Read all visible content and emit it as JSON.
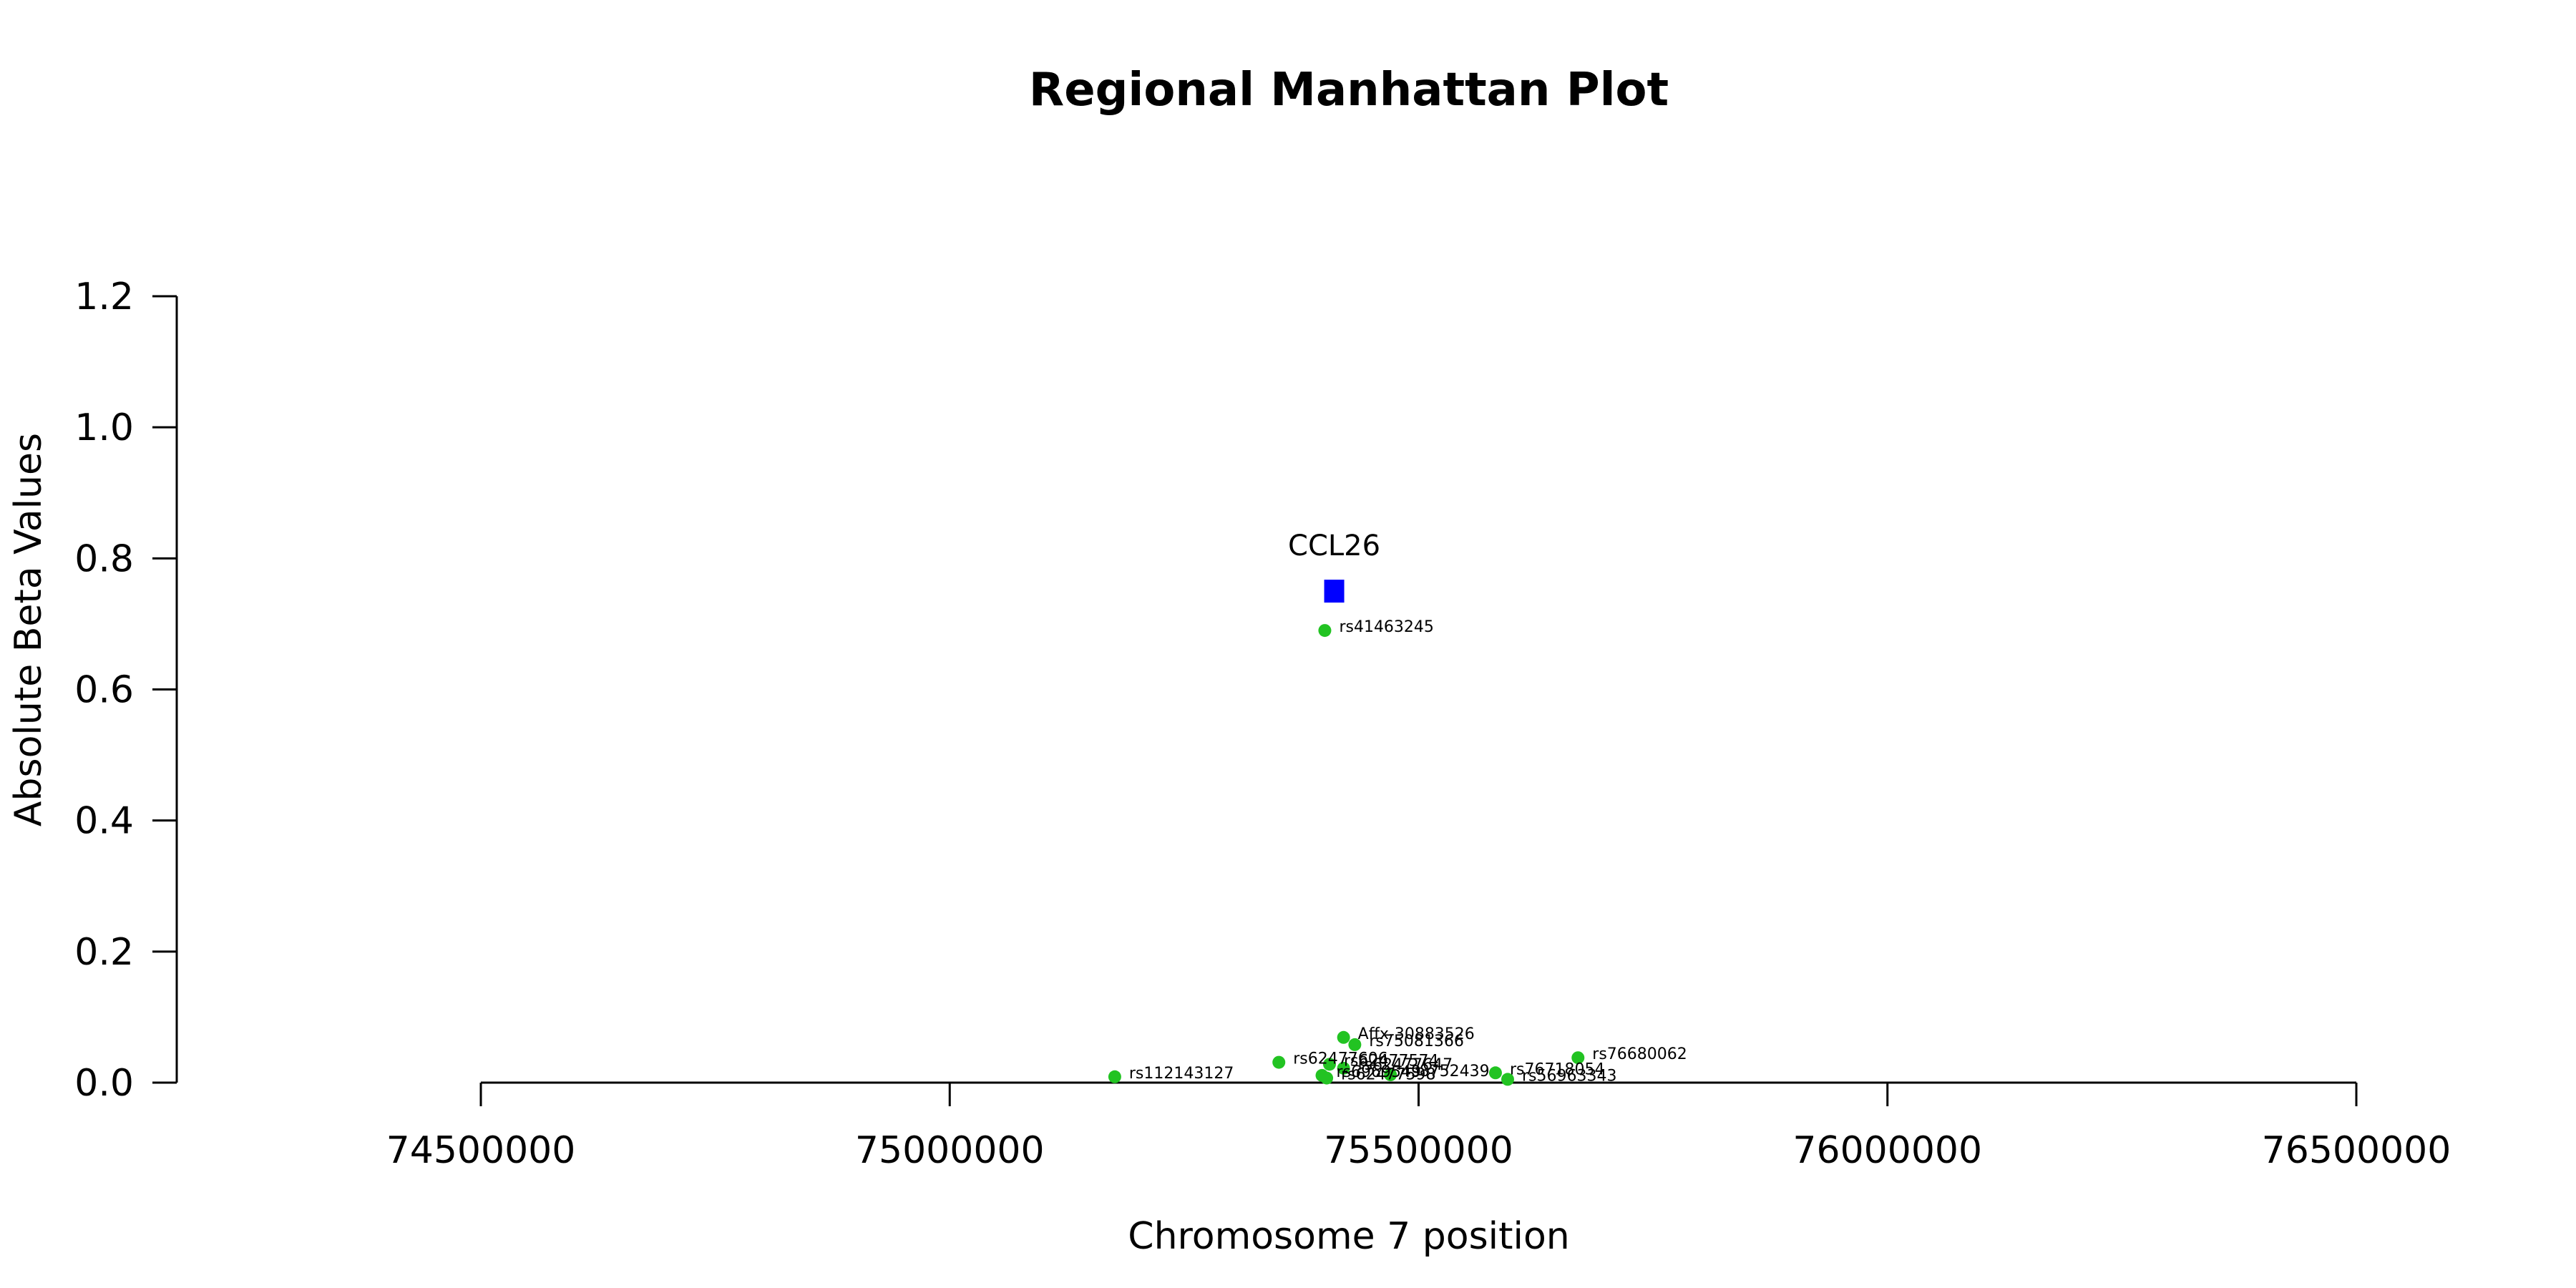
{
  "chart_data": {
    "type": "scatter",
    "title": "Regional Manhattan Plot",
    "xlabel": "Chromosome 7 position",
    "ylabel": "Absolute Beta Values",
    "xlim": [
      74500000,
      76500000
    ],
    "ylim": [
      0,
      1.2
    ],
    "x_ticks": [
      74500000,
      75000000,
      75500000,
      76000000,
      76500000
    ],
    "y_ticks": [
      0.0,
      0.2,
      0.4,
      0.6,
      0.8,
      1.0,
      1.2
    ],
    "x_tick_labels": [
      "74500000",
      "75000000",
      "75500000",
      "76000000",
      "76500000"
    ],
    "y_tick_labels": [
      "0.0",
      "0.2",
      "0.4",
      "0.6",
      "0.8",
      "1.0",
      "1.2"
    ],
    "grid": false,
    "colors": {
      "snp": "#22c322",
      "gene": "#0000ff"
    },
    "gene": {
      "name": "CCL26",
      "x": 75410000,
      "y": 0.75
    },
    "points": [
      {
        "label": "rs41463245",
        "x": 75400000,
        "y": 0.69
      },
      {
        "label": "Affx-30883526",
        "x": 75420000,
        "y": 0.069
      },
      {
        "label": "rs75081366",
        "x": 75432000,
        "y": 0.058
      },
      {
        "label": "rs76680062",
        "x": 75670000,
        "y": 0.038
      },
      {
        "label": "rs62477606",
        "x": 75351000,
        "y": 0.031
      },
      {
        "label": "rs62477574",
        "x": 75405000,
        "y": 0.028
      },
      {
        "label": "rs62477647",
        "x": 75420000,
        "y": 0.022
      },
      {
        "label": "rs76718054",
        "x": 75582000,
        "y": 0.015
      },
      {
        "label": "rs8752439",
        "x": 75470000,
        "y": 0.012
      },
      {
        "label": "rs6969549",
        "x": 75397000,
        "y": 0.011
      },
      {
        "label": "rs112143127",
        "x": 75176000,
        "y": 0.009
      },
      {
        "label": "rs56963343",
        "x": 75595000,
        "y": 0.005
      },
      {
        "label": "rs62477598",
        "x": 75402000,
        "y": 0.007
      }
    ]
  }
}
